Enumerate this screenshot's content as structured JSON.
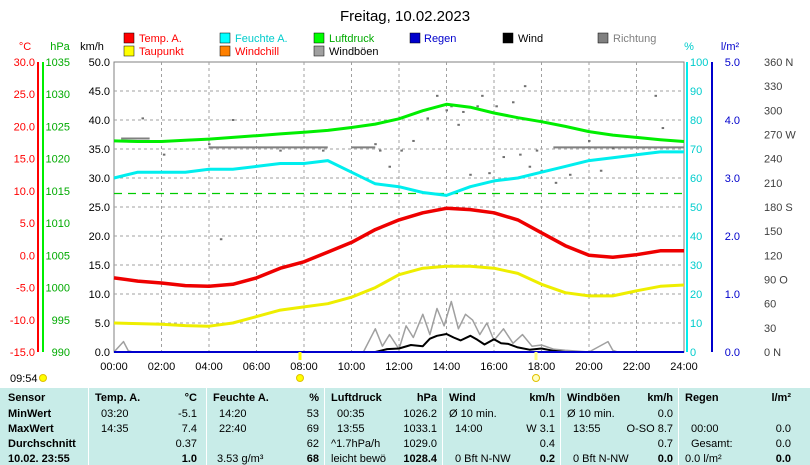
{
  "header": {
    "date": "Freitag, 10.02.2023"
  },
  "legend": [
    {
      "label": "Temp. A.",
      "color": "#ff0000"
    },
    {
      "label": "Feuchte A.",
      "color": "#00ffff"
    },
    {
      "label": "Luftdruck",
      "color": "#00ff00"
    },
    {
      "label": "Regen",
      "color": "#0000cc"
    },
    {
      "label": "Wind",
      "color": "#000000"
    },
    {
      "label": "Richtung",
      "color": "#808080"
    },
    {
      "label": "Taupunkt",
      "color": "#ffff00"
    },
    {
      "label": "Windchill",
      "color": "#ff8000"
    },
    {
      "label": "Windböen",
      "color": "#a0a0a0"
    }
  ],
  "axis_units": {
    "temp": "°C",
    "pressure": "hPa",
    "wind": "km/h",
    "humidity": "%",
    "rain": "l/m²"
  },
  "timestamp": "09:54",
  "chart_data": {
    "type": "line",
    "title": "Freitag, 10.02.2023",
    "x_ticks": [
      "00:00",
      "02:00",
      "04:00",
      "06:00",
      "08:00",
      "10:00",
      "12:00",
      "14:00",
      "16:00",
      "18:00",
      "20:00",
      "22:00",
      "24:00"
    ],
    "axes": {
      "temp": {
        "unit": "°C",
        "range": [
          -15,
          30
        ],
        "ticks": [
          "30.0",
          "25.0",
          "20.0",
          "15.0",
          "10.0",
          "5.0",
          "0.0",
          "-5.0",
          "-10.0",
          "-15.0"
        ],
        "color": "#ff0000"
      },
      "pressure": {
        "unit": "hPa",
        "range": [
          990,
          1040
        ],
        "ticks": [
          "1035",
          "1030",
          "1025",
          "1020",
          "1015",
          "1010",
          "1005",
          "1000",
          "995",
          "990"
        ],
        "color": "#00cc00"
      },
      "wind": {
        "unit": "km/h",
        "range": [
          0,
          50
        ],
        "ticks": [
          "50.0",
          "45.0",
          "40.0",
          "35.0",
          "30.0",
          "25.0",
          "20.0",
          "15.0",
          "10.0",
          "5.0",
          "0.0"
        ]
      },
      "humidity": {
        "unit": "%",
        "range": [
          0,
          100
        ],
        "ticks": [
          "100",
          "90",
          "80",
          "70",
          "60",
          "50",
          "40",
          "30",
          "20",
          "10",
          "0"
        ],
        "color": "#00cccc"
      },
      "rain": {
        "unit": "l/m²",
        "range": [
          0,
          5
        ],
        "ticks": [
          "5.0",
          "4.0",
          "3.0",
          "2.0",
          "1.0",
          "0.0"
        ],
        "color": "#0000cc"
      },
      "direction": {
        "range": [
          0,
          360
        ],
        "ticks": [
          "360 N",
          "330",
          "300",
          "270 W",
          "240",
          "210",
          "180 S",
          "150",
          "120",
          "90 O",
          "60",
          "30",
          "0 N"
        ]
      }
    },
    "series": [
      {
        "name": "Luftdruck",
        "axis": "pressure",
        "color": "#00ee00",
        "x": [
          0,
          1,
          2,
          3,
          4,
          5,
          6,
          7,
          8,
          9,
          10,
          11,
          12,
          13,
          14,
          15,
          16,
          17,
          18,
          19,
          20,
          21,
          22,
          23,
          24
        ],
        "y": [
          1026.4,
          1026.3,
          1026.3,
          1026.5,
          1026.7,
          1027.0,
          1027.3,
          1027.6,
          1027.9,
          1028.2,
          1028.7,
          1029.3,
          1030.2,
          1031.6,
          1032.7,
          1032.2,
          1031.2,
          1030.4,
          1029.7,
          1028.9,
          1028.0,
          1027.4,
          1027.0,
          1026.6,
          1026.3
        ]
      },
      {
        "name": "Feuchte A.",
        "axis": "humidity",
        "color": "#00eeee",
        "x": [
          0,
          1,
          2,
          3,
          4,
          5,
          6,
          7,
          8,
          9,
          10,
          11,
          12,
          13,
          14,
          15,
          16,
          17,
          18,
          19,
          20,
          21,
          22,
          23,
          24
        ],
        "y": [
          60,
          62,
          62,
          62,
          63,
          63,
          64,
          65,
          65,
          66,
          62,
          58,
          57,
          55,
          54,
          57,
          59,
          60,
          62,
          64,
          66,
          67,
          68,
          69,
          69
        ]
      },
      {
        "name": "Temp. A.",
        "axis": "temp",
        "color": "#ee0000",
        "x": [
          0,
          1,
          2,
          3,
          4,
          5,
          6,
          7,
          8,
          9,
          10,
          11,
          12,
          13,
          14,
          15,
          16,
          17,
          18,
          19,
          20,
          21,
          22,
          23,
          24
        ],
        "y": [
          -3.5,
          -4.0,
          -4.3,
          -4.7,
          -4.8,
          -4.5,
          -3.5,
          -2.0,
          -1.0,
          0.5,
          2.0,
          4.0,
          5.5,
          6.6,
          7.3,
          7.1,
          6.6,
          5.5,
          3.5,
          1.5,
          0.0,
          -0.3,
          0.1,
          0.7,
          0.7
        ]
      },
      {
        "name": "Taupunkt",
        "axis": "temp",
        "color": "#eeee00",
        "x": [
          0,
          1,
          2,
          3,
          4,
          5,
          6,
          7,
          8,
          9,
          10,
          11,
          12,
          13,
          14,
          15,
          16,
          17,
          18,
          19,
          20,
          21,
          22,
          23,
          24
        ],
        "y": [
          -10.5,
          -10.6,
          -10.7,
          -10.9,
          -11.0,
          -10.5,
          -9.5,
          -8.5,
          -8.0,
          -7.5,
          -6.5,
          -5.0,
          -3.0,
          -2.0,
          -1.7,
          -1.7,
          -2.0,
          -2.8,
          -4.5,
          -5.8,
          -6.3,
          -6.3,
          -5.5,
          -4.8,
          -4.6
        ]
      },
      {
        "name": "Wind",
        "axis": "wind",
        "color": "#000000",
        "x": [
          0,
          10.5,
          11,
          11.5,
          12,
          12.5,
          13,
          13.3,
          13.6,
          14,
          14.3,
          14.6,
          15,
          15.3,
          15.6,
          16,
          16.3,
          16.6,
          17,
          17.5,
          18,
          18.5,
          19,
          24
        ],
        "y": [
          0,
          0,
          0,
          0.5,
          0.6,
          1.2,
          1.0,
          2.3,
          2.8,
          3.1,
          2.5,
          2.0,
          2.8,
          2.1,
          1.3,
          2.2,
          1.5,
          1.4,
          0.8,
          0.4,
          0.6,
          0.2,
          0,
          0
        ]
      },
      {
        "name": "Windböen",
        "axis": "wind",
        "color": "#a0a0a0",
        "x": [
          0,
          0.4,
          0.6,
          0.8,
          4,
          10.5,
          11,
          11.3,
          11.6,
          12,
          12.3,
          12.6,
          13,
          13.3,
          13.6,
          13.9,
          14.2,
          14.5,
          14.8,
          15.1,
          15.4,
          15.7,
          16,
          16.4,
          16.8,
          17.2,
          17.6,
          18,
          18.5,
          19,
          20,
          20.8,
          21,
          21.2,
          22,
          24
        ],
        "y": [
          0,
          1.8,
          0.2,
          0,
          0,
          0,
          4.0,
          1.0,
          3.0,
          0.5,
          4.5,
          2.5,
          6.5,
          3.0,
          7.5,
          4.5,
          8.7,
          4.0,
          6.5,
          5.5,
          3.0,
          5.0,
          2.0,
          4.0,
          1.5,
          3.0,
          1.0,
          1.2,
          0.5,
          0.3,
          0,
          1.8,
          0.3,
          0,
          0,
          0
        ]
      },
      {
        "name": "Regen",
        "axis": "rain",
        "color": "#0000cc",
        "x": [
          0,
          24
        ],
        "y": [
          0,
          0
        ]
      }
    ],
    "reference_line": {
      "axis": "temp",
      "value": 9.6,
      "color": "#00cc00",
      "style": "dashed"
    },
    "direction_marks": {
      "axis": "direction",
      "bars": [
        {
          "x_start": 0.3,
          "x_end": 1.5,
          "y": 265
        },
        {
          "x_start": 4.0,
          "x_end": 9.0,
          "y": 254
        },
        {
          "x_start": 10.0,
          "x_end": 11.0,
          "y": 254
        },
        {
          "x_start": 18.5,
          "x_end": 24.0,
          "y": 254
        }
      ],
      "points": [
        [
          1.2,
          290
        ],
        [
          2.1,
          245
        ],
        [
          4.0,
          258
        ],
        [
          4.5,
          140
        ],
        [
          5.0,
          288
        ],
        [
          7.0,
          250
        ],
        [
          8.8,
          250
        ],
        [
          11.0,
          258
        ],
        [
          11.2,
          250
        ],
        [
          11.6,
          230
        ],
        [
          12.1,
          250
        ],
        [
          12.6,
          262
        ],
        [
          13.2,
          290
        ],
        [
          13.6,
          318
        ],
        [
          14.0,
          300
        ],
        [
          14.2,
          305
        ],
        [
          14.5,
          282
        ],
        [
          14.7,
          298
        ],
        [
          15.0,
          220
        ],
        [
          15.3,
          305
        ],
        [
          15.5,
          318
        ],
        [
          15.8,
          222
        ],
        [
          16.1,
          305
        ],
        [
          16.4,
          242
        ],
        [
          16.8,
          310
        ],
        [
          17.1,
          245
        ],
        [
          17.3,
          330
        ],
        [
          17.5,
          230
        ],
        [
          17.8,
          250
        ],
        [
          18.0,
          225
        ],
        [
          18.6,
          210
        ],
        [
          19.2,
          220
        ],
        [
          20.0,
          262
        ],
        [
          20.5,
          225
        ],
        [
          21.0,
          253
        ],
        [
          22.8,
          318
        ],
        [
          23.1,
          278
        ]
      ]
    }
  },
  "table": {
    "columns": [
      {
        "title": "Sensor",
        "unit": "",
        "rows": [
          "MinWert",
          "MaxWert",
          "Durchschnitt",
          "10.02. 23:55"
        ]
      },
      {
        "title": "Temp. A.",
        "unit": "°C",
        "rows": [
          [
            "03:20",
            "-5.1"
          ],
          [
            "14:35",
            "7.4"
          ],
          [
            "",
            "0.37"
          ],
          [
            "",
            "1.0"
          ]
        ]
      },
      {
        "title": "Feuchte A.",
        "unit": "%",
        "rows": [
          [
            "14:20",
            "53"
          ],
          [
            "22:40",
            "69"
          ],
          [
            "",
            "62"
          ],
          [
            "3.53 g/m³",
            "68"
          ]
        ]
      },
      {
        "title": "Luftdruck",
        "unit": "hPa",
        "rows": [
          [
            "00:35",
            "1026.2"
          ],
          [
            "13:55",
            "1033.1"
          ],
          [
            "^1.7hPa/h",
            "1029.0"
          ],
          [
            "leicht bewö",
            "1028.4"
          ]
        ]
      },
      {
        "title": "Wind",
        "unit": "km/h",
        "rows": [
          [
            "Ø 10 min.",
            "0.1"
          ],
          [
            "14:00",
            "W 3.1"
          ],
          [
            "",
            "0.4"
          ],
          [
            "0 Bft N-NW",
            "0.2"
          ]
        ]
      },
      {
        "title": "Windböen",
        "unit": "km/h",
        "rows": [
          [
            "Ø 10 min.",
            "0.0"
          ],
          [
            "13:55",
            "O-SO 8.7"
          ],
          [
            "",
            "0.7"
          ],
          [
            "0 Bft N-NW",
            "0.0"
          ]
        ]
      },
      {
        "title": "Regen",
        "unit": "l/m²",
        "rows": [
          [
            "",
            ""
          ],
          [
            "00:00",
            "0.0"
          ],
          [
            "Gesamt:",
            "0.0"
          ],
          [
            "0.0 l/m²",
            "0.0"
          ]
        ]
      }
    ]
  }
}
